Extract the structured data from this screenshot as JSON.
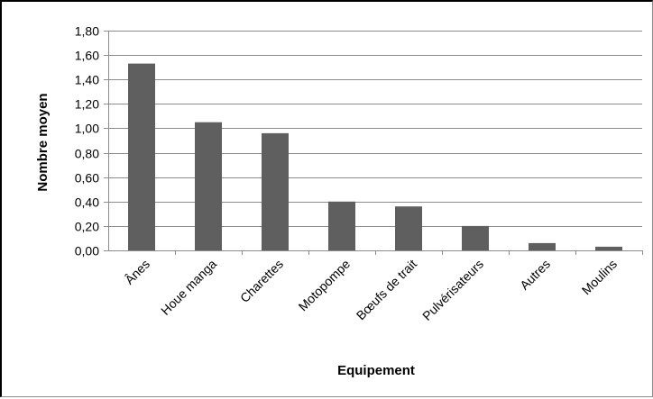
{
  "chart_data": {
    "type": "bar",
    "title": "",
    "xlabel": "Equipement",
    "ylabel": "Nombre moyen",
    "categories": [
      "Ânes",
      "Houe manga",
      "Charettes",
      "Motopompe",
      "Bœufs de trait",
      "Pulvérisateurs",
      "Autres",
      "Moulins"
    ],
    "values": [
      1.53,
      1.05,
      0.96,
      0.4,
      0.36,
      0.2,
      0.06,
      0.03
    ],
    "ylim": [
      0,
      1.8
    ],
    "yticks": [
      "0,00",
      "0,20",
      "0,40",
      "0,60",
      "0,80",
      "1,00",
      "1,20",
      "1,40",
      "1,60",
      "1,80"
    ],
    "grid": true,
    "legend": "none",
    "bar_color": "#5f5f5f",
    "grid_color": "#8c8c8c"
  }
}
